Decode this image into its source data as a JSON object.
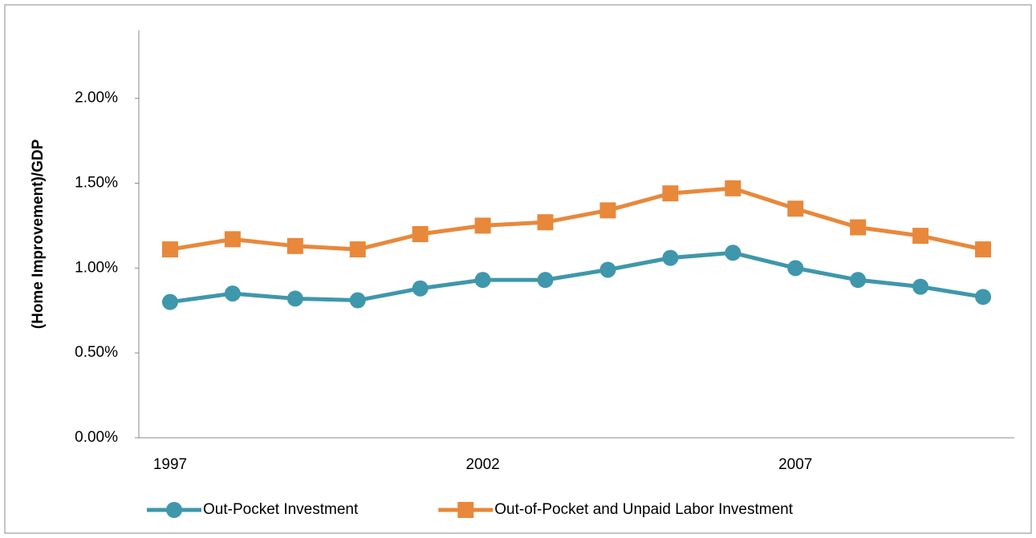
{
  "chart_data": {
    "type": "line",
    "y_label": "(Home Improvement)/GDP",
    "categories": [
      "1997",
      null,
      null,
      null,
      null,
      "2002",
      null,
      null,
      null,
      null,
      "2007",
      null,
      null,
      null
    ],
    "series": [
      {
        "name": "Out-Pocket Investment",
        "color": "#3f97ab",
        "marker": "circle",
        "values": [
          0.8,
          0.85,
          0.82,
          0.81,
          0.88,
          0.93,
          0.93,
          0.99,
          1.06,
          1.09,
          1.0,
          0.93,
          0.89,
          0.83
        ]
      },
      {
        "name": "Out-of-Pocket and Unpaid Labor Investment",
        "color": "#e8883b",
        "marker": "square",
        "values": [
          1.11,
          1.17,
          1.13,
          1.11,
          1.2,
          1.25,
          1.27,
          1.34,
          1.44,
          1.47,
          1.35,
          1.24,
          1.19,
          1.11
        ]
      }
    ],
    "ylim": [
      0,
      2.4
    ],
    "yticks": [
      {
        "value": 0,
        "label": "0.00%"
      },
      {
        "value": 0.5,
        "label": "0.50%"
      },
      {
        "value": 1,
        "label": "1.00%"
      },
      {
        "value": 1.5,
        "label": "1.50%"
      },
      {
        "value": 2,
        "label": "2.00%"
      }
    ],
    "grid": false,
    "legend": "bottom"
  }
}
